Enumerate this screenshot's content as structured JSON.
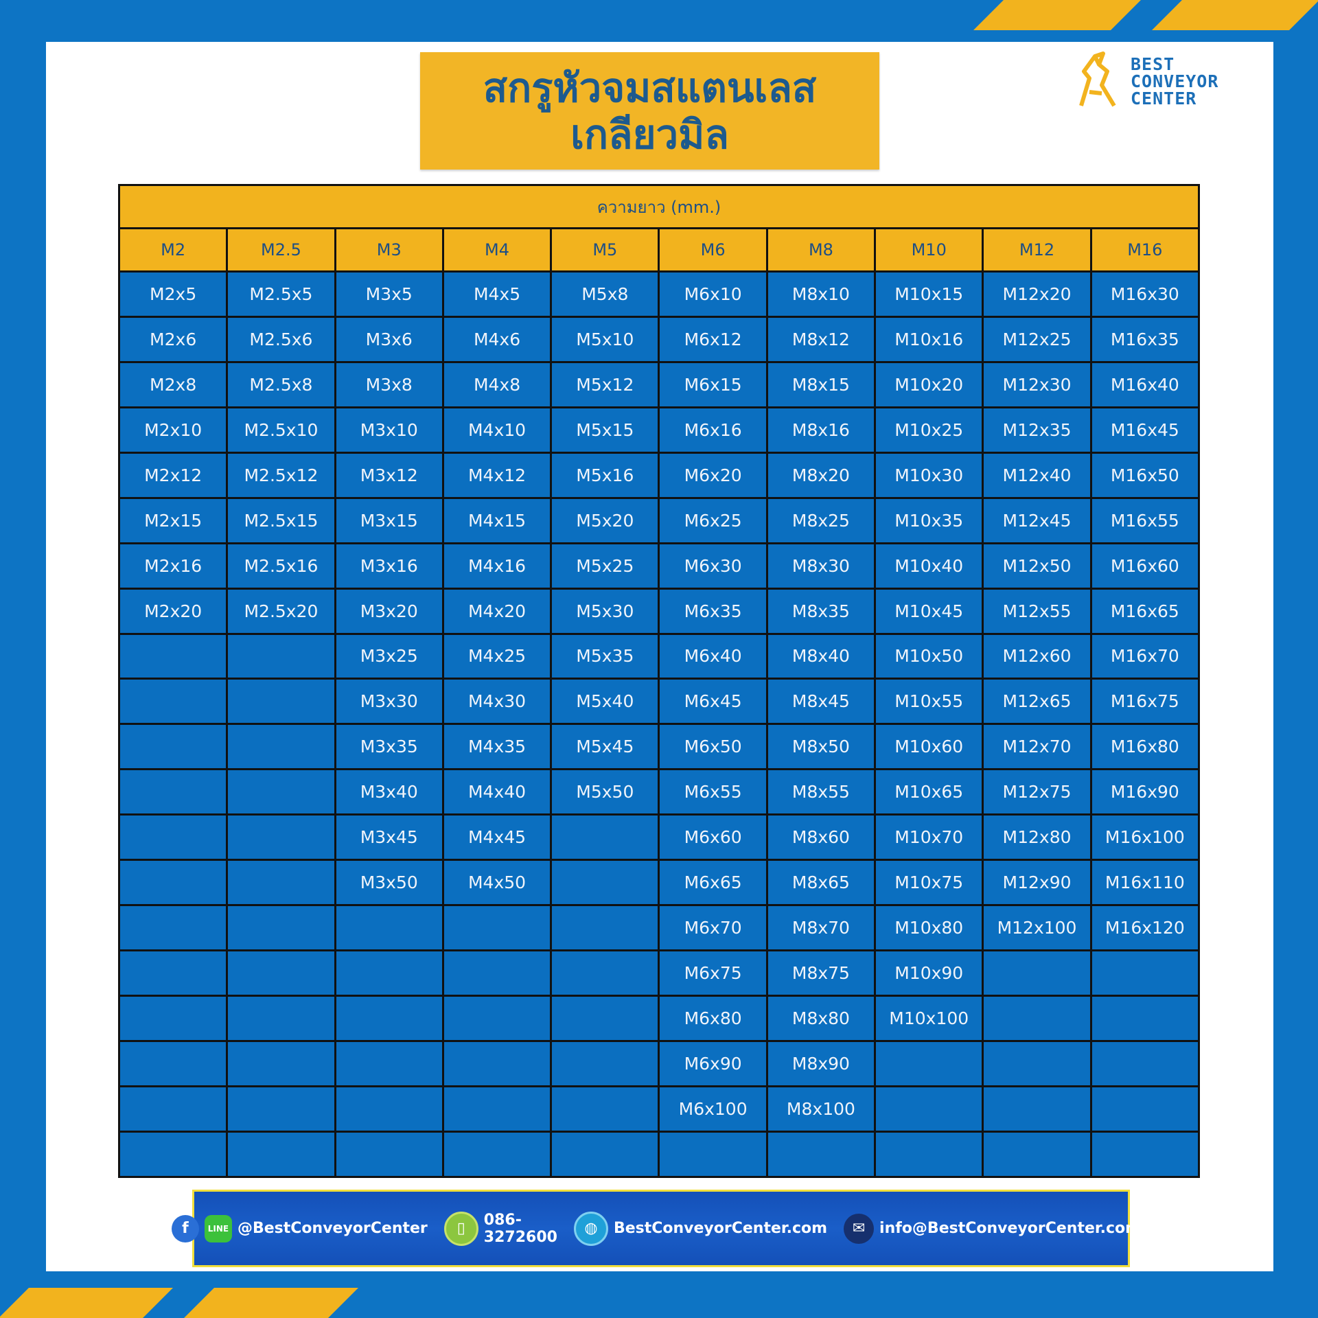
{
  "title": {
    "line1": "สกรูหัวจมสแตนเลส",
    "line2": "เกลียวมิล"
  },
  "logo": {
    "line1": "BEST",
    "line2": "CONVEYOR",
    "line3": "CENTER"
  },
  "colors": {
    "frame": "#0d74c4",
    "accent": "#f2b31e",
    "cell": "#0b6fc0",
    "header_text": "#1d4f86"
  },
  "table": {
    "caption": "ความยาว (mm.)",
    "headers": [
      "M2",
      "M2.5",
      "M3",
      "M4",
      "M5",
      "M6",
      "M8",
      "M10",
      "M12",
      "M16"
    ],
    "row_count": 20,
    "columns": [
      [
        "M2x5",
        "M2x6",
        "M2x8",
        "M2x10",
        "M2x12",
        "M2x15",
        "M2x16",
        "M2x20"
      ],
      [
        "M2.5x5",
        "M2.5x6",
        "M2.5x8",
        "M2.5x10",
        "M2.5x12",
        "M2.5x15",
        "M2.5x16",
        "M2.5x20"
      ],
      [
        "M3x5",
        "M3x6",
        "M3x8",
        "M3x10",
        "M3x12",
        "M3x15",
        "M3x16",
        "M3x20",
        "M3x25",
        "M3x30",
        "M3x35",
        "M3x40",
        "M3x45",
        "M3x50"
      ],
      [
        "M4x5",
        "M4x6",
        "M4x8",
        "M4x10",
        "M4x12",
        "M4x15",
        "M4x16",
        "M4x20",
        "M4x25",
        "M4x30",
        "M4x35",
        "M4x40",
        "M4x45",
        "M4x50"
      ],
      [
        "M5x8",
        "M5x10",
        "M5x12",
        "M5x15",
        "M5x16",
        "M5x20",
        "M5x25",
        "M5x30",
        "M5x35",
        "M5x40",
        "M5x45",
        "M5x50"
      ],
      [
        "M6x10",
        "M6x12",
        "M6x15",
        "M6x16",
        "M6x20",
        "M6x25",
        "M6x30",
        "M6x35",
        "M6x40",
        "M6x45",
        "M6x50",
        "M6x55",
        "M6x60",
        "M6x65",
        "M6x70",
        "M6x75",
        "M6x80",
        "M6x90",
        "M6x100"
      ],
      [
        "M8x10",
        "M8x12",
        "M8x15",
        "M8x16",
        "M8x20",
        "M8x25",
        "M8x30",
        "M8x35",
        "M8x40",
        "M8x45",
        "M8x50",
        "M8x55",
        "M8x60",
        "M8x65",
        "M8x70",
        "M8x75",
        "M8x80",
        "M8x90",
        "M8x100"
      ],
      [
        "M10x15",
        "M10x16",
        "M10x20",
        "M10x25",
        "M10x30",
        "M10x35",
        "M10x40",
        "M10x45",
        "M10x50",
        "M10x55",
        "M10x60",
        "M10x65",
        "M10x70",
        "M10x75",
        "M10x80",
        "M10x90",
        "M10x100"
      ],
      [
        "M12x20",
        "M12x25",
        "M12x30",
        "M12x35",
        "M12x40",
        "M12x45",
        "M12x50",
        "M12x55",
        "M12x60",
        "M12x65",
        "M12x70",
        "M12x75",
        "M12x80",
        "M12x90",
        "M12x100"
      ],
      [
        "M16x30",
        "M16x35",
        "M16x40",
        "M16x45",
        "M16x50",
        "M16x55",
        "M16x60",
        "M16x65",
        "M16x70",
        "M16x75",
        "M16x80",
        "M16x90",
        "M16x100",
        "M16x110",
        "M16x120"
      ]
    ]
  },
  "footer": {
    "social": "@BestConveyorCenter",
    "phone": "086-3272600",
    "website": "BestConveyorCenter.com",
    "email": "info@BestConveyorCenter.com",
    "icons": [
      "facebook-icon",
      "line-icon",
      "phone-icon",
      "globe-icon",
      "mail-icon"
    ]
  }
}
